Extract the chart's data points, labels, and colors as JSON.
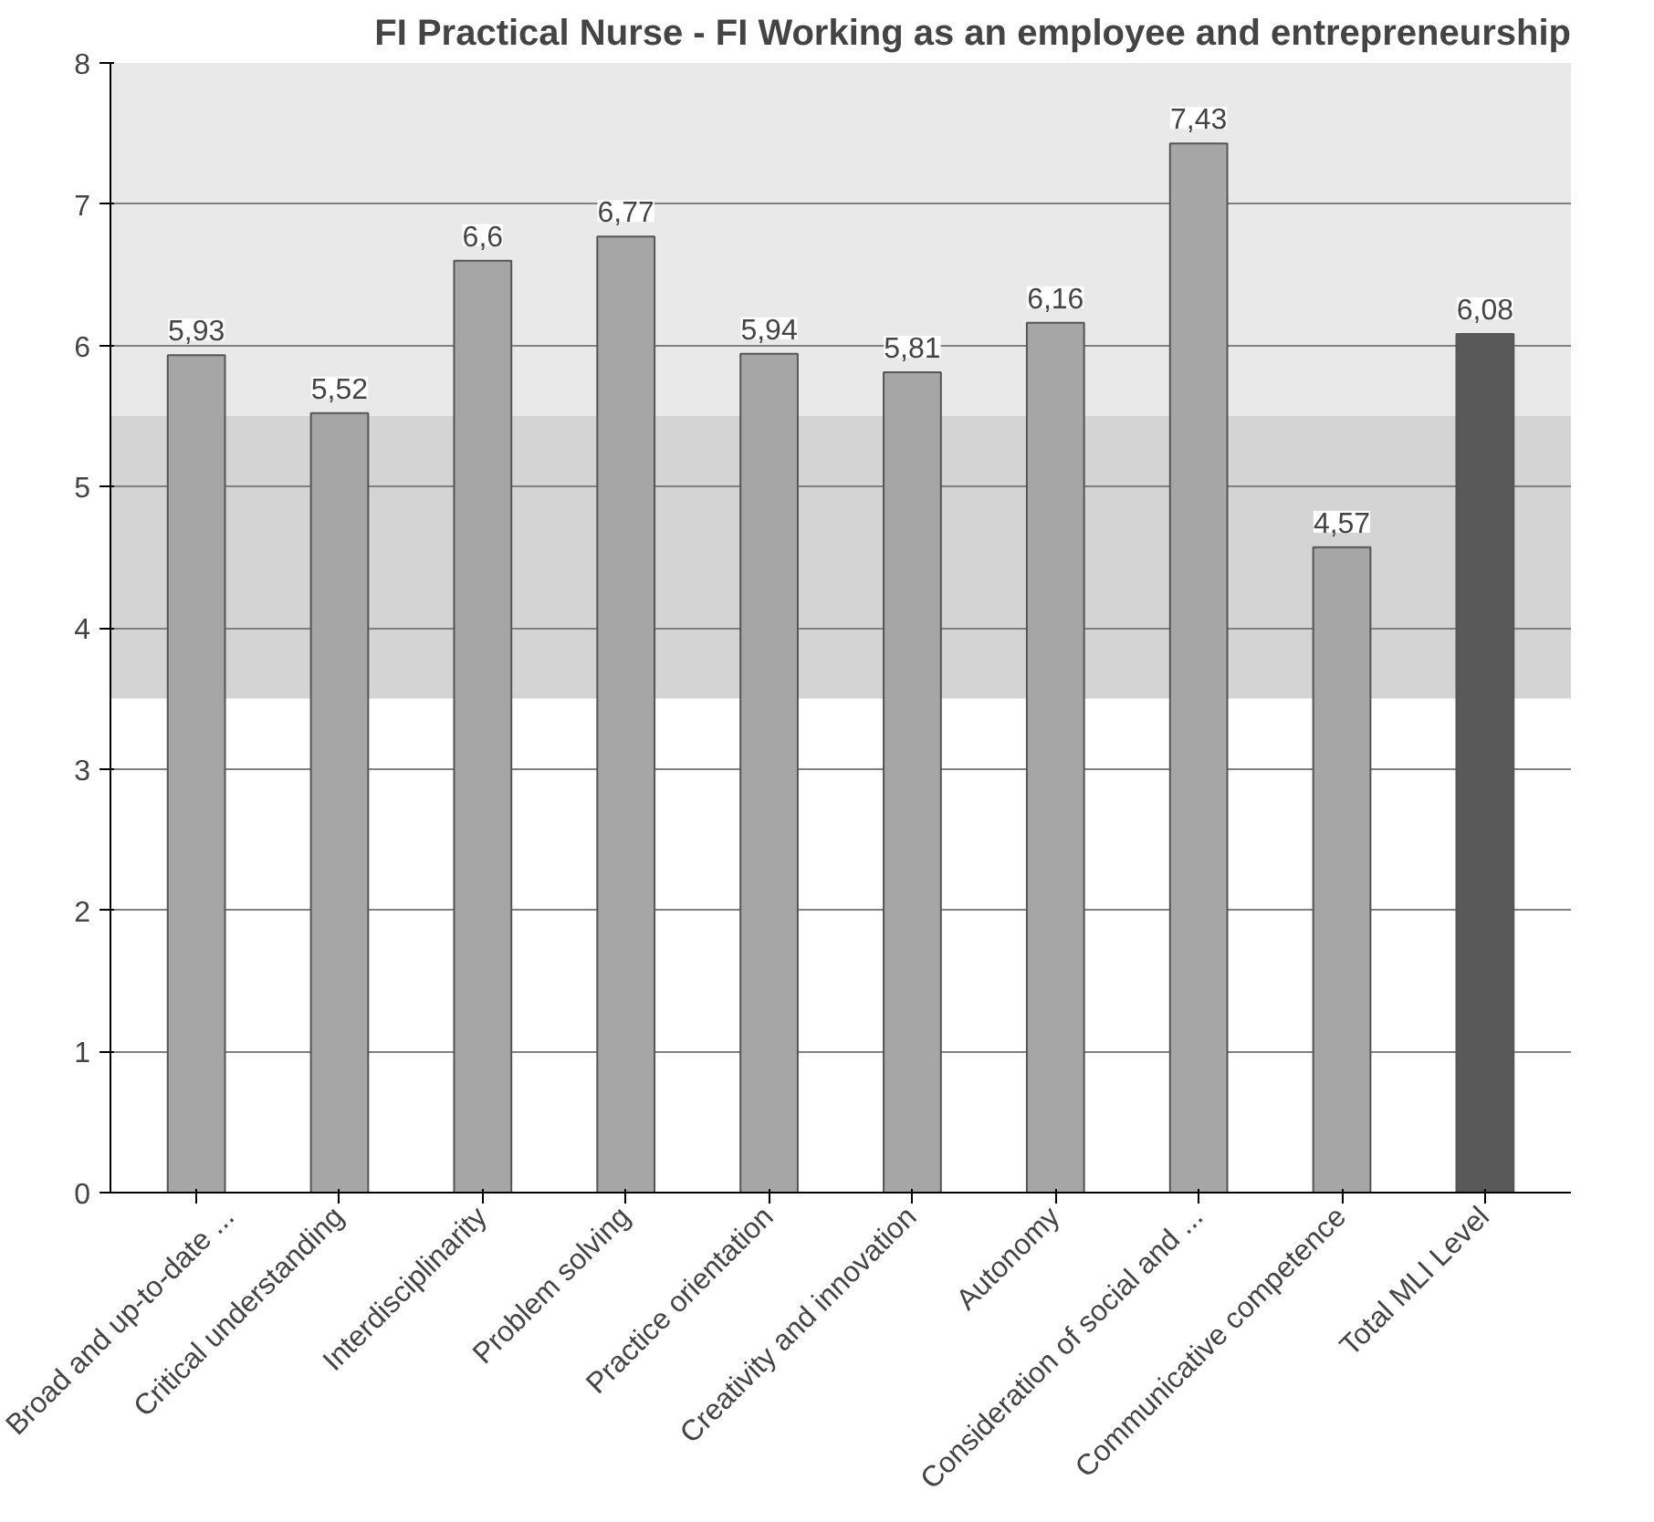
{
  "chart_data": {
    "type": "bar",
    "title": "FI Practical Nurse - FI Working as an employee and entrepreneurship",
    "categories": [
      "Broad and up-to-date ...",
      "Critical understanding",
      "Interdisciplinarity",
      "Problem solving",
      "Practice orientation",
      "Creativity and innovation",
      "Autonomy",
      "Consideration of social and ...",
      "Communicative competence",
      "Total MLI Level"
    ],
    "values": [
      5.93,
      5.52,
      6.6,
      6.77,
      5.94,
      5.81,
      6.16,
      7.43,
      4.57,
      6.08
    ],
    "value_labels": [
      "5,93",
      "5,52",
      "6,6",
      "6,77",
      "5,94",
      "5,81",
      "6,16",
      "7,43",
      "4,57",
      "6,08"
    ],
    "colors": [
      "#a6a6a6",
      "#a6a6a6",
      "#a6a6a6",
      "#a6a6a6",
      "#a6a6a6",
      "#a6a6a6",
      "#a6a6a6",
      "#a6a6a6",
      "#a6a6a6",
      "#595959"
    ],
    "ylim": [
      0,
      8
    ],
    "yticks": [
      0,
      1,
      2,
      3,
      4,
      5,
      6,
      7,
      8
    ],
    "grid": "y",
    "bands": [
      {
        "axis": "y",
        "from": 3.5,
        "to": 5.5,
        "color": "#d4d4d4"
      },
      {
        "axis": "y",
        "from": 5.5,
        "to": 8,
        "color": "#e9e9e9"
      }
    ]
  }
}
